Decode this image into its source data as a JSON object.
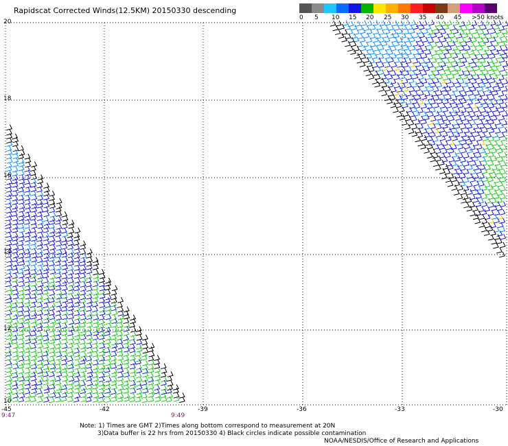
{
  "title": "Rapidscat Corrected Winds(12.5KM) 20150330 descending",
  "legend": {
    "labels": [
      "0",
      "5",
      "10",
      "15",
      "20",
      "25",
      "30",
      "35",
      "40",
      "45",
      ">50 knots"
    ],
    "colors": [
      "#555555",
      "#8a8a8a",
      "#1ec8ff",
      "#0a6cff",
      "#1414e6",
      "#00b400",
      "#ffe600",
      "#ffb000",
      "#ff7800",
      "#ff1e1e",
      "#c80000",
      "#7a3a14",
      "#d2a07a",
      "#ff00ff",
      "#b400c8",
      "#5a0070"
    ]
  },
  "map": {
    "lat_labels": [
      "20",
      "18",
      "16",
      "14",
      "12",
      "10"
    ],
    "lon_labels": [
      "-45",
      "-42",
      "-39",
      "-36",
      "-33",
      "-30"
    ],
    "time_labels": [
      "9:47",
      "9:49"
    ],
    "wind_colors": {
      "calm": "#000000",
      "light": "#0a8cff",
      "moderate": "#1414e6",
      "fresh": "#19c819",
      "strong": "#e6c800"
    }
  },
  "notes": {
    "line1": "Note: 1) Times are GMT 2)Times along bottom correspond to measurement at 20N",
    "line2": "3)Data buffer is 22 hrs from 20150330 4) Black circles indicate possible contamination"
  },
  "credit": "NOAA/NESDIS/Office of Research and Applications"
}
